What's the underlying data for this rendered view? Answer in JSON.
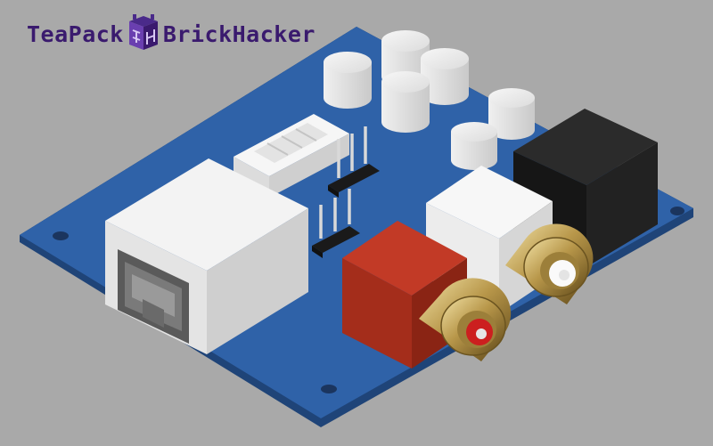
{
  "logo": {
    "left_text": "TeaPack",
    "right_text": "BrickHacker"
  },
  "colors": {
    "background": "#a9a9a9",
    "pcb": "#2f62a8",
    "logo_purple": "#3a1a6e",
    "rca_red": "#b5311f",
    "rca_white": "#f4f4f4",
    "toslink_black": "#1c1c1c",
    "gold": "#c9b06a"
  }
}
